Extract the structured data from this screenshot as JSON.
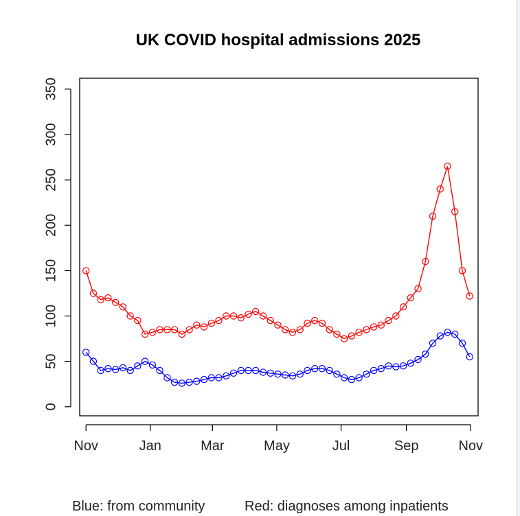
{
  "chart_data": {
    "type": "scatter",
    "title": "UK COVID hospital admissions 2025",
    "footer": {
      "community": "Blue: from community",
      "inpatients": "Red: diagnoses among inpatients"
    },
    "xlabel": "",
    "ylabel": "",
    "x_ticks": [
      "Nov",
      "Jan",
      "Mar",
      "May",
      "Jul",
      "Sep",
      "Nov"
    ],
    "x_tick_dates": [
      "2024-11-01",
      "2025-01-01",
      "2025-03-01",
      "2025-05-01",
      "2025-07-01",
      "2025-09-01",
      "2025-11-01"
    ],
    "y_ticks": [
      0,
      50,
      100,
      150,
      200,
      250,
      300,
      350
    ],
    "ylim": [
      -10,
      362
    ],
    "xlim": [
      "2024-10-26",
      "2025-11-08"
    ],
    "grid": false,
    "colors": {
      "community": "#0000ff",
      "inpatients": "#ff0000"
    },
    "series": [
      {
        "color": "#0000ff",
        "x": [
          "2024-11-01",
          "2024-11-08",
          "2024-11-15",
          "2024-11-22",
          "2024-11-29",
          "2024-12-06",
          "2024-12-13",
          "2024-12-20",
          "2024-12-27",
          "2025-01-03",
          "2025-01-10",
          "2025-01-17",
          "2025-01-24",
          "2025-01-31",
          "2025-02-07",
          "2025-02-14",
          "2025-02-21",
          "2025-02-28",
          "2025-03-07",
          "2025-03-14",
          "2025-03-21",
          "2025-03-28",
          "2025-04-04",
          "2025-04-11",
          "2025-04-18",
          "2025-04-25",
          "2025-05-02",
          "2025-05-09",
          "2025-05-16",
          "2025-05-23",
          "2025-05-30",
          "2025-06-06",
          "2025-06-13",
          "2025-06-20",
          "2025-06-27",
          "2025-07-04",
          "2025-07-11",
          "2025-07-18",
          "2025-07-25",
          "2025-08-01",
          "2025-08-08",
          "2025-08-15",
          "2025-08-22",
          "2025-08-29",
          "2025-09-05",
          "2025-09-12",
          "2025-09-19",
          "2025-09-26",
          "2025-10-03",
          "2025-10-10",
          "2025-10-17",
          "2025-10-24",
          "2025-10-31"
        ],
        "values": [
          60,
          50,
          40,
          42,
          41,
          43,
          40,
          45,
          50,
          46,
          40,
          32,
          27,
          26,
          27,
          28,
          30,
          32,
          32,
          34,
          37,
          40,
          40,
          40,
          38,
          37,
          36,
          35,
          34,
          36,
          40,
          42,
          42,
          40,
          36,
          32,
          30,
          32,
          36,
          40,
          42,
          45,
          44,
          45,
          48,
          52,
          58,
          70,
          78,
          82,
          80,
          70,
          55
        ]
      },
      {
        "color": "#ff0000",
        "x": [
          "2024-11-01",
          "2024-11-08",
          "2024-11-15",
          "2024-11-22",
          "2024-11-29",
          "2024-12-06",
          "2024-12-13",
          "2024-12-20",
          "2024-12-27",
          "2025-01-03",
          "2025-01-10",
          "2025-01-17",
          "2025-01-24",
          "2025-01-31",
          "2025-02-07",
          "2025-02-14",
          "2025-02-21",
          "2025-02-28",
          "2025-03-07",
          "2025-03-14",
          "2025-03-21",
          "2025-03-28",
          "2025-04-04",
          "2025-04-11",
          "2025-04-18",
          "2025-04-25",
          "2025-05-02",
          "2025-05-09",
          "2025-05-16",
          "2025-05-23",
          "2025-05-30",
          "2025-06-06",
          "2025-06-13",
          "2025-06-20",
          "2025-06-27",
          "2025-07-04",
          "2025-07-11",
          "2025-07-18",
          "2025-07-25",
          "2025-08-01",
          "2025-08-08",
          "2025-08-15",
          "2025-08-22",
          "2025-08-29",
          "2025-09-05",
          "2025-09-12",
          "2025-09-19",
          "2025-09-26",
          "2025-10-03",
          "2025-10-10",
          "2025-10-17",
          "2025-10-24",
          "2025-10-31"
        ],
        "values": [
          150,
          125,
          118,
          120,
          115,
          110,
          100,
          95,
          80,
          82,
          85,
          85,
          85,
          80,
          85,
          90,
          88,
          92,
          95,
          100,
          100,
          98,
          102,
          105,
          100,
          95,
          90,
          85,
          82,
          85,
          92,
          95,
          92,
          85,
          80,
          75,
          78,
          82,
          85,
          88,
          90,
          95,
          100,
          110,
          120,
          130,
          160,
          210,
          240,
          265,
          215,
          150,
          122
        ]
      }
    ]
  }
}
